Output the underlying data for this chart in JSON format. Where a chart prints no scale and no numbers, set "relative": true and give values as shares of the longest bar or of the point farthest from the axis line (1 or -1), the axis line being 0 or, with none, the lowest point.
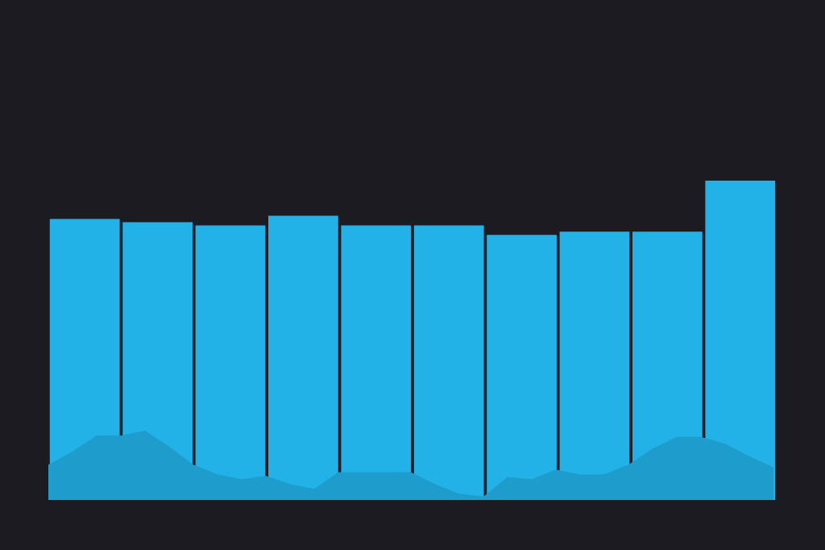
{
  "chart_data": [
    {
      "type": "bar",
      "relative": true,
      "categories": [
        null,
        null,
        null,
        null,
        null,
        null,
        null,
        null,
        null,
        null
      ],
      "color": "#22b2e8",
      "values": [
        0.88,
        0.87,
        0.86,
        0.89,
        0.86,
        0.86,
        0.83,
        0.84,
        0.84,
        1
      ]
    },
    {
      "type": "area",
      "relative": true,
      "categories": [
        null,
        null,
        null,
        null,
        null,
        null,
        null,
        null,
        null,
        null,
        null,
        null,
        null,
        null,
        null,
        null,
        null,
        null,
        null,
        null,
        null,
        null,
        null,
        null,
        null,
        null,
        null,
        null,
        null,
        null,
        null
      ],
      "color": "#1e9ccc",
      "values": [
        0.51,
        0.7,
        0.93,
        0.93,
        1,
        0.77,
        0.51,
        0.37,
        0.3,
        0.35,
        0.23,
        0.16,
        0.4,
        0.4,
        0.4,
        0.4,
        0.23,
        0.09,
        0.05,
        0.33,
        0.3,
        0.44,
        0.37,
        0.37,
        0.51,
        0.74,
        0.91,
        0.91,
        0.81,
        0.63,
        0.47
      ]
    }
  ]
}
